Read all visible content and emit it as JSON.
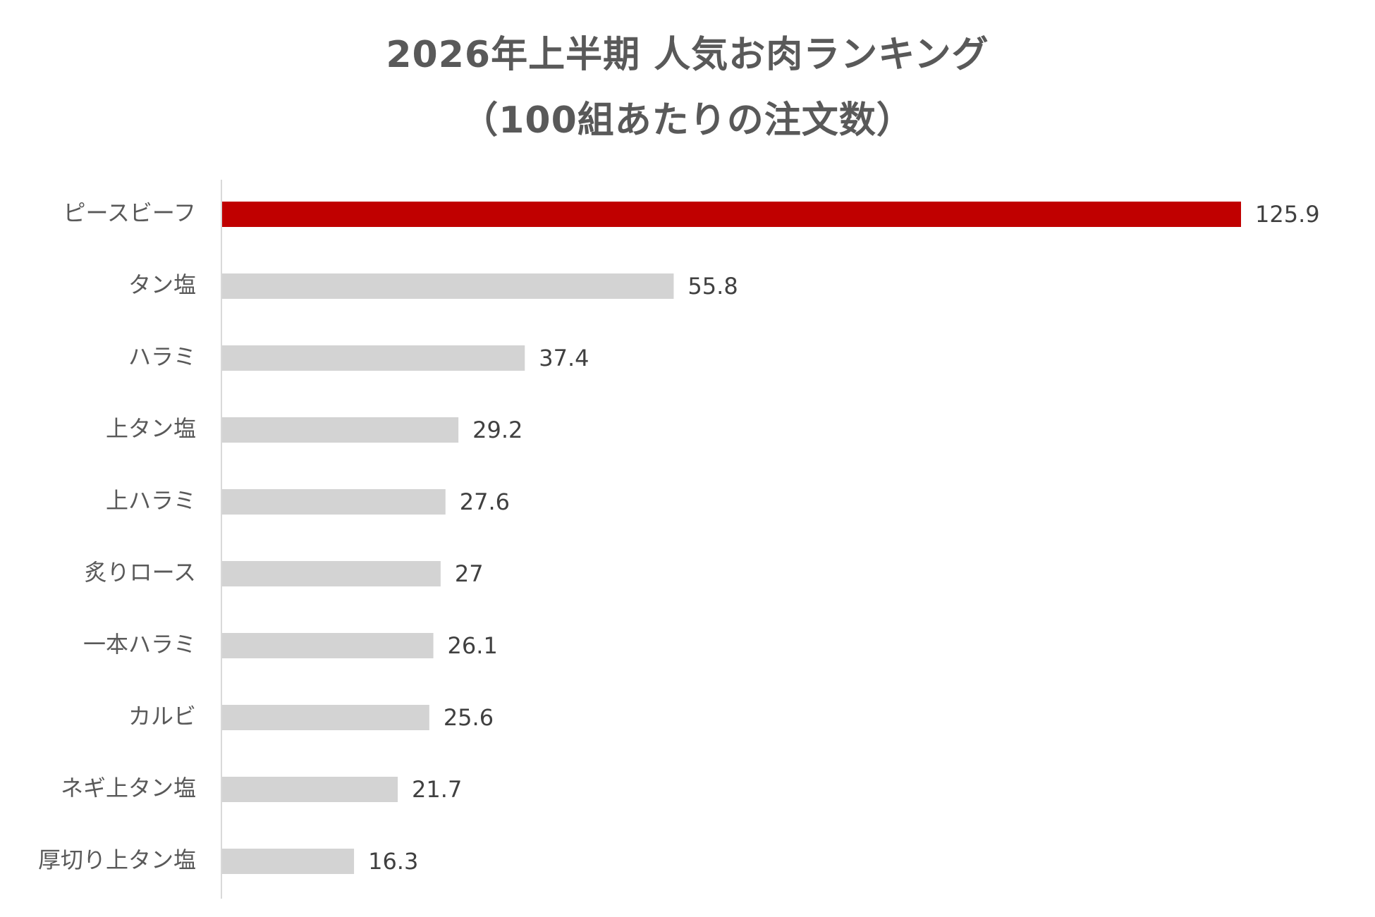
{
  "chart_data": {
    "type": "bar",
    "orientation": "horizontal",
    "title_line1": "2026年上半期 人気お肉ランキング",
    "title_line2": "（100組あたりの注文数）",
    "categories": [
      "ピースビーフ",
      "タン塩",
      "ハラミ",
      "上タン塩",
      "上ハラミ",
      "炙りロース",
      "一本ハラミ",
      "カルビ",
      "ネギ上タン塩",
      "厚切り上タン塩"
    ],
    "values": [
      125.9,
      55.8,
      37.4,
      29.2,
      27.6,
      27,
      26.1,
      25.6,
      21.7,
      16.3
    ],
    "value_labels": [
      "125.9",
      "55.8",
      "37.4",
      "29.2",
      "27.6",
      "27",
      "26.1",
      "25.6",
      "21.7",
      "16.3"
    ],
    "xlim": [
      0,
      125.9
    ],
    "grid": false,
    "legend": "none",
    "colors": {
      "highlight": "#C00000",
      "default": "#D3D3D3",
      "axis": "#D9D9D9"
    },
    "highlight_index": 0
  }
}
